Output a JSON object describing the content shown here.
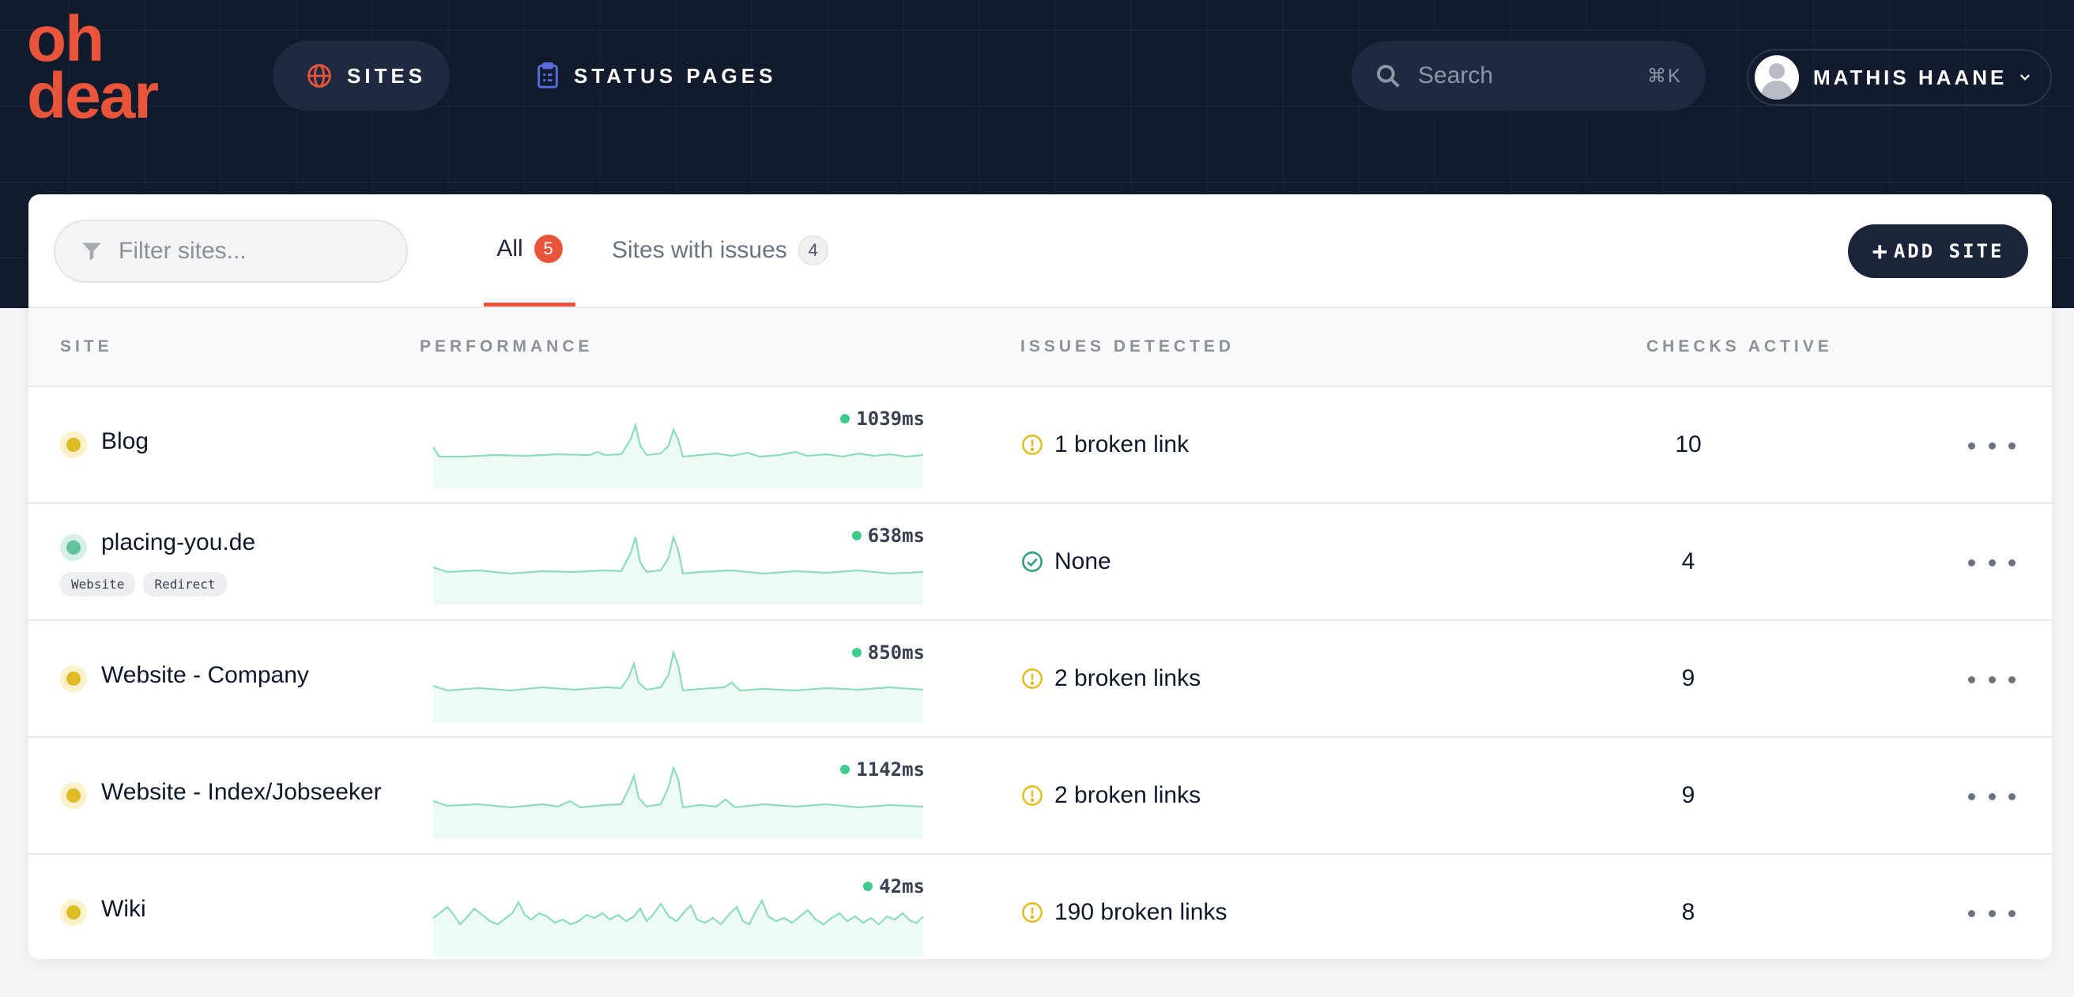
{
  "brand": {
    "logo_line1": "oh",
    "logo_line2": "dear",
    "accent": "#e8553a"
  },
  "nav": {
    "sites_label": "SITES",
    "status_pages_label": "STATUS PAGES"
  },
  "search": {
    "placeholder": "Search",
    "shortcut": "⌘K"
  },
  "user": {
    "name": "MATHIS HAANE"
  },
  "toolbar": {
    "filter_placeholder": "Filter sites...",
    "tabs": [
      {
        "label": "All",
        "count": "5"
      },
      {
        "label": "Sites with issues",
        "count": "4"
      }
    ],
    "add_site_label": "ADD SITE"
  },
  "table": {
    "headers": [
      "SITE",
      "PERFORMANCE",
      "ISSUES DETECTED",
      "CHECKS ACTIVE"
    ],
    "rows": [
      {
        "name": "Blog",
        "status": "warning",
        "tags": [],
        "response_time": "1039ms",
        "issues": "1 broken link",
        "issue_status": "warning",
        "checks": "10"
      },
      {
        "name": "placing-you.de",
        "status": "ok",
        "tags": [
          "Website",
          "Redirect"
        ],
        "response_time": "638ms",
        "issues": "None",
        "issue_status": "ok",
        "checks": "4"
      },
      {
        "name": "Website - Company",
        "status": "warning",
        "tags": [],
        "response_time": "850ms",
        "issues": "2 broken links",
        "issue_status": "warning",
        "checks": "9"
      },
      {
        "name": "Website - Index/Jobseeker",
        "status": "warning",
        "tags": [],
        "response_time": "1142ms",
        "issues": "2 broken links",
        "issue_status": "warning",
        "checks": "9"
      },
      {
        "name": "Wiki",
        "status": "warning",
        "tags": [],
        "response_time": "42ms",
        "issues": "190 broken links",
        "issue_status": "warning",
        "checks": "8"
      }
    ]
  },
  "colors": {
    "warning": "#e0bd27",
    "ok": "#2f9e74",
    "sparkline": "#8fdcbc",
    "navy": "#121a2d"
  }
}
